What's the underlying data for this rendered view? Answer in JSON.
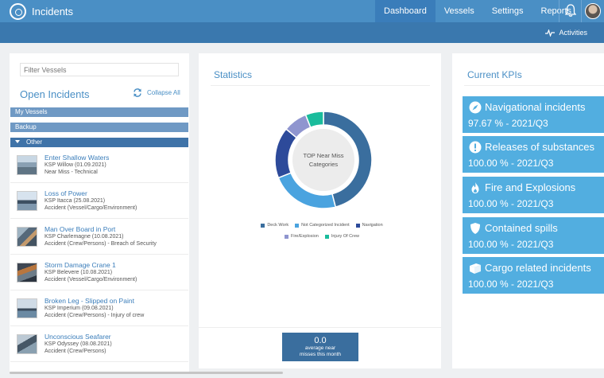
{
  "header": {
    "app_title": "Incidents",
    "nav": [
      "Dashboard",
      "Vessels",
      "Settings",
      "Reports"
    ],
    "active_nav": "Dashboard",
    "icons": [
      "logo-icon",
      "bell-icon",
      "avatar"
    ]
  },
  "subbar": {
    "activities_label": "Activities"
  },
  "left_panel": {
    "filter_placeholder": "Filter Vessels",
    "title": "Open Incidents",
    "collapse_label": "Collapse All",
    "groups": [
      "My Vessels",
      "Backup",
      "Other"
    ],
    "incidents": [
      {
        "title": "Enter Shallow Waters",
        "vessel": "KSP Willow (01.09.2021)",
        "category": "Near Miss - Technical"
      },
      {
        "title": "Loss of Power",
        "vessel": "KSP Itacca (25.08.2021)",
        "category": "Accident (Vessel/Cargo/Environment)"
      },
      {
        "title": "Man Over Board in Port",
        "vessel": "KSP Charlemagne (10.08.2021)",
        "category": "Accident (Crew/Persons) - Breach of Security"
      },
      {
        "title": "Storm Damage Crane 1",
        "vessel": "KSP Belevere (10.08.2021)",
        "category": "Accident (Vessel/Cargo/Environment)"
      },
      {
        "title": "Broken Leg - Slipped on Paint",
        "vessel": "KSP Imperium (09.08.2021)",
        "category": "Accident (Crew/Persons) - Injury of crew"
      },
      {
        "title": "Unconscious Seafarer",
        "vessel": "KSP Odyssey (08.08.2021)",
        "category": "Accident (Crew/Persons)"
      }
    ]
  },
  "statistics": {
    "title": "Statistics",
    "center_label_line1": "TOP Near Miss",
    "center_label_line2": "Categories",
    "average_value": "0.0",
    "average_label_line1": "average near",
    "average_label_line2": "misses this month"
  },
  "chart_data": {
    "type": "pie",
    "series": [
      {
        "name": "Deck Work",
        "value": 46,
        "color": "#3a6e9e"
      },
      {
        "name": "Not Categorized Incident",
        "value": 23,
        "color": "#4aa3df"
      },
      {
        "name": "Navigation",
        "value": 17,
        "color": "#2d4a9a"
      },
      {
        "name": "Fire/Explosion",
        "value": 8,
        "color": "#8f95cf"
      },
      {
        "name": "Injury Of Crew",
        "value": 6,
        "color": "#1abc9c"
      }
    ],
    "legend_position": "bottom"
  },
  "kpis": {
    "title": "Current KPIs",
    "cards": [
      {
        "name": "Navigational incidents",
        "value": "97.67 % - 2021/Q3",
        "icon": "compass-icon"
      },
      {
        "name": "Releases of substances",
        "value": "100.00 % - 2021/Q3",
        "icon": "warning-icon"
      },
      {
        "name": "Fire and Explosions",
        "value": "100.00 % - 2021/Q3",
        "icon": "fire-icon"
      },
      {
        "name": "Contained spills",
        "value": "100.00 % - 2021/Q3",
        "icon": "shield-icon"
      },
      {
        "name": "Cargo related incidents",
        "value": "100.00 % - 2021/Q3",
        "icon": "box-icon"
      }
    ]
  }
}
